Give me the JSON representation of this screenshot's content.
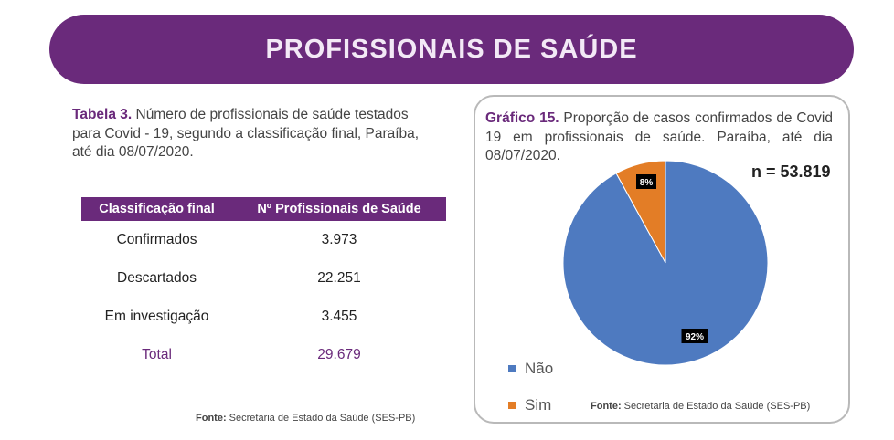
{
  "banner": {
    "title": "PROFISSIONAIS DE SAÚDE"
  },
  "table_section": {
    "caption_label": "Tabela 3.",
    "caption_text": " Número de profissionais de saúde testados para Covid - 19, segundo a classificação final, Paraíba, até dia 08/07/2020.",
    "headers": [
      "Classificação final",
      "Nº Profissionais de Saúde"
    ],
    "rows": [
      [
        "Confirmados",
        "3.973"
      ],
      [
        "Descartados",
        "22.251"
      ],
      [
        "Em investigação",
        "3.455"
      ]
    ],
    "total": [
      "Total",
      "29.679"
    ],
    "fonte_label": "Fonte:",
    "fonte_text": " Secretaria de Estado da Saúde (SES-PB)"
  },
  "chart_section": {
    "caption_label": "Gráfico 15.",
    "caption_text": " Proporção de casos confirmados de Covid 19 em profissionais de saúde. Paraíba, até dia 08/07/2020.",
    "n_label": "n = 53.819",
    "fonte_label": "Fonte:",
    "fonte_text": " Secretaria de Estado da Saúde (SES-PB)"
  },
  "chart_data": {
    "type": "pie",
    "categories": [
      "Não",
      "Sim"
    ],
    "values": [
      92,
      8
    ],
    "labels": [
      "92%",
      "8%"
    ],
    "colors": [
      "#4e7ac0",
      "#e37d26"
    ],
    "legend_position": "bottom-left"
  },
  "colors": {
    "brand_purple": "#6a2a7b",
    "banner_text": "#f3e9f6",
    "panel_border": "#b9b9b9"
  }
}
